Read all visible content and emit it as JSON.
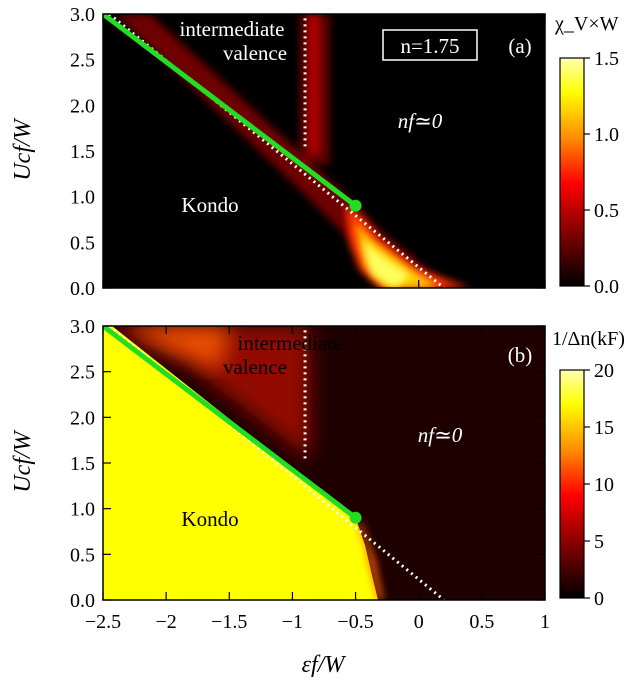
{
  "chart_data": [
    {
      "type": "heatmap",
      "panel_label": "(a)",
      "colorbar": {
        "title": "χ_V×W",
        "ticks": [
          "0.0",
          "0.5",
          "1.0",
          "1.5"
        ],
        "range": [
          0,
          1.5
        ],
        "colormap": [
          "#000000",
          "#8b0000",
          "#ff0000",
          "#ff8c00",
          "#ffff00",
          "#ffffb0"
        ]
      },
      "annotations": {
        "boxed_label": "n=1.75",
        "region_iv_line1": "intermediate",
        "region_iv_line2": "valence",
        "region_nf": "nf≃0",
        "region_kondo": "Kondo"
      },
      "boundary_green": {
        "x": [
          -2.5,
          -0.5
        ],
        "y": [
          3.0,
          0.9
        ],
        "color": "#22dd22"
      },
      "endpoint": {
        "x": -0.5,
        "y": 0.9
      },
      "dotted_diagonal": {
        "x": [
          -2.45,
          0.2
        ],
        "y": [
          3.0,
          0.0
        ]
      },
      "dotted_vertical": {
        "x": [
          -0.9,
          -0.9
        ],
        "y": [
          1.55,
          3.0
        ]
      },
      "xlim": [
        -2.5,
        1.0
      ],
      "ylim": [
        0.0,
        3.0
      ]
    },
    {
      "type": "heatmap",
      "panel_label": "(b)",
      "colorbar": {
        "title": "1/Δn(kF)",
        "ticks": [
          "0",
          "5",
          "10",
          "15",
          "20"
        ],
        "range": [
          0,
          20
        ],
        "colormap": [
          "#000000",
          "#8b0000",
          "#ff0000",
          "#ff8c00",
          "#ffff00",
          "#ffffb0"
        ]
      },
      "annotations": {
        "region_iv_line1": "intermediate",
        "region_iv_line2": "valence",
        "region_nf": "nf≃0",
        "region_kondo": "Kondo"
      },
      "boundary_green": {
        "x": [
          -2.5,
          -0.5
        ],
        "y": [
          3.0,
          0.9
        ],
        "color": "#22dd22"
      },
      "endpoint": {
        "x": -0.5,
        "y": 0.9
      },
      "dotted_diagonal": {
        "x": [
          -2.45,
          0.2
        ],
        "y": [
          3.0,
          0.0
        ]
      },
      "dotted_vertical": {
        "x": [
          -0.9,
          -0.9
        ],
        "y": [
          1.55,
          3.0
        ]
      },
      "xlim": [
        -2.5,
        1.0
      ],
      "ylim": [
        0.0,
        3.0
      ]
    }
  ],
  "axes": {
    "xlabel": "εf/W",
    "ylabel": "Ucf/W",
    "xticks": [
      "−2.5",
      "−2",
      "−1.5",
      "−1",
      "−0.5",
      "0",
      "0.5",
      "1"
    ],
    "yticks": [
      "0.0",
      "0.5",
      "1.0",
      "1.5",
      "2.0",
      "2.5",
      "3.0"
    ]
  }
}
